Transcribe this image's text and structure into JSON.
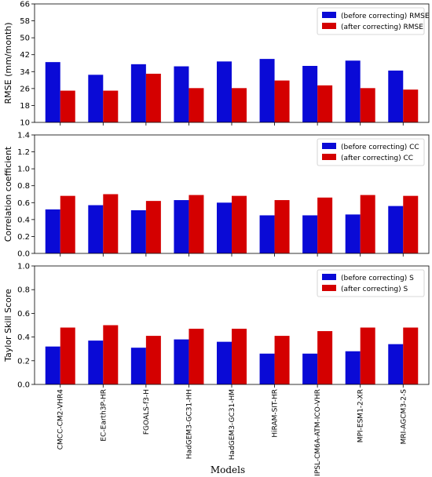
{
  "chart_data": {
    "type": "bar",
    "xlabel": "Models",
    "categories": [
      "CMCC-CM2-VHR4",
      "EC-Earth3P-HR",
      "FGOALS-f3-H",
      "HadGEM3-GC31-HH",
      "HadGEM3-GC31-HM",
      "HiRAM-SIT-HR",
      "IPSL-CM6A-ATM-ICO-VHR",
      "MPI-ESM1-2-XR",
      "MRI-AGCM3-2-S"
    ],
    "colors": {
      "before": "#0a0ad6",
      "after": "#d40000"
    },
    "panels": [
      {
        "ylabel": "RMSE (mm/month)",
        "ylim": [
          10,
          66
        ],
        "yticks": [
          10,
          18,
          26,
          34,
          42,
          50,
          58,
          66
        ],
        "ytick_labels": [
          "10",
          "18",
          "26",
          "34",
          "42",
          "50",
          "58",
          "66"
        ],
        "legend_position": "top-right",
        "series": [
          {
            "name": "(before correcting) RMSE",
            "values": [
              38.5,
              32.5,
              37.5,
              36.5,
              38.8,
              40.0,
              36.7,
              39.2,
              34.5
            ]
          },
          {
            "name": "(after correcting) RMSE",
            "values": [
              25.0,
              25.0,
              33.0,
              26.2,
              26.2,
              29.8,
              27.5,
              26.2,
              25.5
            ]
          }
        ]
      },
      {
        "ylabel": "Correlation coefficient",
        "ylim": [
          0.0,
          1.4
        ],
        "yticks": [
          0.0,
          0.2,
          0.4,
          0.6,
          0.8,
          1.0,
          1.2,
          1.4
        ],
        "ytick_labels": [
          "0.0",
          "0.2",
          "0.4",
          "0.6",
          "0.8",
          "1.0",
          "1.2",
          "1.4"
        ],
        "legend_position": "top-right",
        "series": [
          {
            "name": "(before correcting) CC",
            "values": [
              0.52,
              0.57,
              0.51,
              0.63,
              0.6,
              0.45,
              0.45,
              0.46,
              0.56
            ]
          },
          {
            "name": "(after correcting) CC",
            "values": [
              0.68,
              0.7,
              0.62,
              0.69,
              0.68,
              0.63,
              0.66,
              0.69,
              0.68
            ]
          }
        ]
      },
      {
        "ylabel": "Taylor Skill Score",
        "ylim": [
          0.0,
          1.0
        ],
        "yticks": [
          0.0,
          0.2,
          0.4,
          0.6,
          0.8,
          1.0
        ],
        "ytick_labels": [
          "0.0",
          "0.2",
          "0.4",
          "0.6",
          "0.8",
          "1.0"
        ],
        "legend_position": "top-right",
        "series": [
          {
            "name": "(before correcting) S",
            "values": [
              0.32,
              0.37,
              0.31,
              0.38,
              0.36,
              0.26,
              0.26,
              0.28,
              0.34
            ]
          },
          {
            "name": "(after correcting) S",
            "values": [
              0.48,
              0.5,
              0.41,
              0.47,
              0.47,
              0.41,
              0.45,
              0.48,
              0.48
            ]
          }
        ]
      }
    ]
  }
}
